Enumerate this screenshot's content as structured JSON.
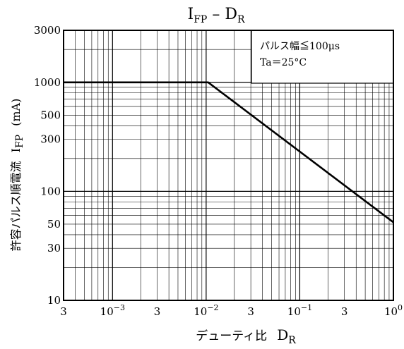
{
  "chart_data": {
    "type": "line",
    "title_main_1": "I",
    "title_sub_1": "FP",
    "title_sep": " – ",
    "title_main_2": "D",
    "title_sub_2": "R",
    "xlabel_text": "デューティ比",
    "xlabel_symbol": "D",
    "xlabel_symbol_sub": "R",
    "ylabel_text": "許容パルス順電流",
    "ylabel_symbol": "I",
    "ylabel_symbol_sub": "FP",
    "ylabel_unit": "(mA)",
    "x_scale": "log",
    "y_scale": "log",
    "xlim": [
      0.0003,
      1
    ],
    "ylim": [
      10,
      3000
    ],
    "grid": true,
    "x_ticks": [
      {
        "value": 0.0003,
        "base": "3",
        "exp": ""
      },
      {
        "value": 0.001,
        "base": "10",
        "exp": "−3"
      },
      {
        "value": 0.003,
        "base": "3",
        "exp": ""
      },
      {
        "value": 0.01,
        "base": "10",
        "exp": "−2"
      },
      {
        "value": 0.03,
        "base": "3",
        "exp": ""
      },
      {
        "value": 0.1,
        "base": "10",
        "exp": "−1"
      },
      {
        "value": 0.3,
        "base": "3",
        "exp": ""
      },
      {
        "value": 1,
        "base": "10",
        "exp": "0"
      }
    ],
    "y_ticks": [
      {
        "value": 10,
        "label": "10"
      },
      {
        "value": 30,
        "label": "30"
      },
      {
        "value": 50,
        "label": "50"
      },
      {
        "value": 100,
        "label": "100"
      },
      {
        "value": 300,
        "label": "300"
      },
      {
        "value": 500,
        "label": "500"
      },
      {
        "value": 1000,
        "label": "1000"
      },
      {
        "value": 3000,
        "label": "3000"
      }
    ],
    "series": [
      {
        "x": [
          0.0003,
          0.0105,
          1
        ],
        "y": [
          1000,
          1000,
          52
        ]
      }
    ],
    "annotation": {
      "line1": "パルス幅≦100μs",
      "line2": "Ta＝25°C",
      "position": "top-right"
    }
  }
}
